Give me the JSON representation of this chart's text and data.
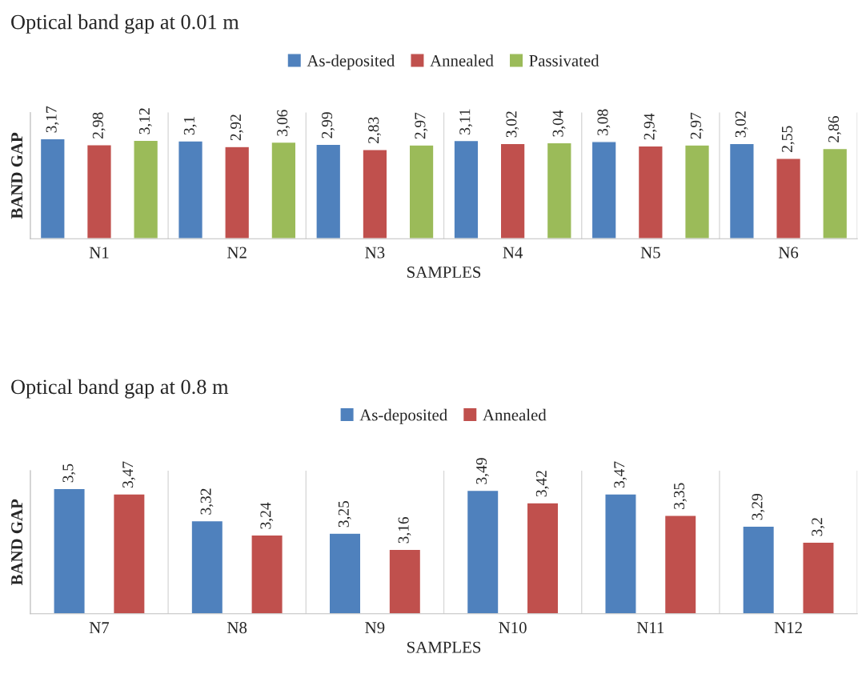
{
  "chart_data": [
    {
      "type": "bar",
      "title": "Optical band gap at 0.01 m",
      "xlabel": "SAMPLES",
      "ylabel": "BAND GAP",
      "categories": [
        "N1",
        "N2",
        "N3",
        "N4",
        "N5",
        "N6"
      ],
      "ylim": [
        0,
        4
      ],
      "tick_labels": "x",
      "grid": "x",
      "legend": "top",
      "series": [
        {
          "name": "As-deposited",
          "color": "#4f81bd",
          "values": [
            3.17,
            3.1,
            2.99,
            3.11,
            3.08,
            3.02
          ],
          "value_labels": [
            "3,17",
            "3,1",
            "2,99",
            "3,11",
            "3,08",
            "3,02"
          ]
        },
        {
          "name": "Annealed",
          "color": "#c0504d",
          "values": [
            2.98,
            2.92,
            2.83,
            3.02,
            2.94,
            2.55
          ],
          "value_labels": [
            "2,98",
            "2,92",
            "2,83",
            "3,02",
            "2,94",
            "2,55"
          ]
        },
        {
          "name": "Passivated",
          "color": "#9bbb59",
          "values": [
            3.12,
            3.06,
            2.97,
            3.04,
            2.97,
            2.86
          ],
          "value_labels": [
            "3,12",
            "3,06",
            "2,97",
            "3,04",
            "2,97",
            "2,86"
          ]
        }
      ]
    },
    {
      "type": "bar",
      "title": "Optical band gap at 0.8 m",
      "xlabel": "SAMPLES",
      "ylabel": "BAND GAP",
      "categories": [
        "N7",
        "N8",
        "N9",
        "N10",
        "N11",
        "N12"
      ],
      "ylim": [
        2.8,
        3.6
      ],
      "tick_labels": "x",
      "grid": "x",
      "legend": "top",
      "series": [
        {
          "name": "As-deposited",
          "color": "#4f81bd",
          "values": [
            3.5,
            3.32,
            3.25,
            3.49,
            3.47,
            3.29
          ],
          "value_labels": [
            "3,5",
            "3,32",
            "3,25",
            "3,49",
            "3,47",
            "3,29"
          ]
        },
        {
          "name": "Annealed",
          "color": "#c0504d",
          "values": [
            3.47,
            3.24,
            3.16,
            3.42,
            3.35,
            3.2
          ],
          "value_labels": [
            "3,47",
            "3,24",
            "3,16",
            "3,42",
            "3,35",
            "3,2"
          ]
        }
      ]
    }
  ]
}
